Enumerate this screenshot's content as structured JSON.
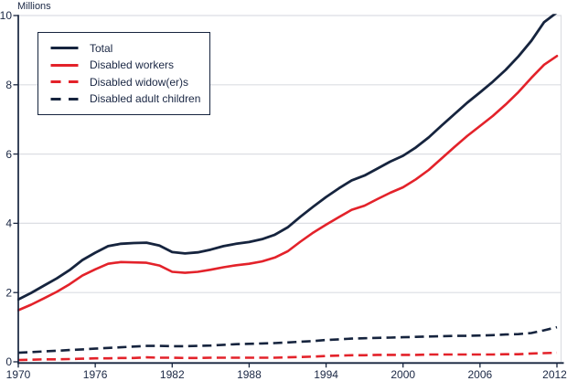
{
  "colors": {
    "navy": "#16243e",
    "red": "#e3222a",
    "grid": "#dcdee3",
    "text": "#1a2744",
    "background": "#ffffff"
  },
  "chart_data": {
    "type": "line",
    "title": "",
    "xlabel": "",
    "ylabel": "Millions",
    "xlim": [
      1970,
      2012
    ],
    "ylim": [
      0,
      10
    ],
    "xticks": [
      1970,
      1976,
      1982,
      1988,
      1994,
      2000,
      2006,
      2012
    ],
    "yticks": [
      0,
      2,
      4,
      6,
      8,
      10
    ],
    "grid": "horizontal",
    "legend_position": "top-left",
    "years": [
      1970,
      1971,
      1972,
      1973,
      1974,
      1975,
      1976,
      1977,
      1978,
      1979,
      1980,
      1981,
      1982,
      1983,
      1984,
      1985,
      1986,
      1987,
      1988,
      1989,
      1990,
      1991,
      1992,
      1993,
      1994,
      1995,
      1996,
      1997,
      1998,
      1999,
      2000,
      2001,
      2002,
      2003,
      2004,
      2005,
      2006,
      2007,
      2008,
      2009,
      2010,
      2011,
      2012
    ],
    "series": [
      {
        "name": "Total",
        "color": "#16243e",
        "style": "solid",
        "values": [
          1.8,
          1.99,
          2.2,
          2.41,
          2.65,
          2.94,
          3.15,
          3.34,
          3.41,
          3.43,
          3.44,
          3.36,
          3.17,
          3.13,
          3.16,
          3.24,
          3.34,
          3.41,
          3.46,
          3.54,
          3.67,
          3.88,
          4.19,
          4.48,
          4.76,
          5.01,
          5.24,
          5.38,
          5.58,
          5.78,
          5.95,
          6.19,
          6.48,
          6.82,
          7.15,
          7.48,
          7.78,
          8.09,
          8.43,
          8.82,
          9.27,
          9.81,
          10.09
        ]
      },
      {
        "name": "Disabled workers",
        "color": "#e3222a",
        "style": "solid",
        "values": [
          1.49,
          1.65,
          1.83,
          2.02,
          2.24,
          2.49,
          2.67,
          2.83,
          2.88,
          2.87,
          2.86,
          2.78,
          2.6,
          2.57,
          2.6,
          2.66,
          2.73,
          2.79,
          2.83,
          2.9,
          3.01,
          3.19,
          3.47,
          3.73,
          3.96,
          4.18,
          4.39,
          4.51,
          4.7,
          4.88,
          5.04,
          5.27,
          5.54,
          5.87,
          6.2,
          6.52,
          6.81,
          7.1,
          7.43,
          7.79,
          8.2,
          8.58,
          8.83
        ]
      },
      {
        "name": "Disabled widow(er)s",
        "color": "#e3222a",
        "style": "dashed",
        "values": [
          0.05,
          0.06,
          0.07,
          0.07,
          0.08,
          0.09,
          0.1,
          0.1,
          0.11,
          0.11,
          0.13,
          0.12,
          0.12,
          0.11,
          0.11,
          0.12,
          0.12,
          0.12,
          0.12,
          0.12,
          0.12,
          0.13,
          0.14,
          0.15,
          0.17,
          0.18,
          0.19,
          0.19,
          0.2,
          0.2,
          0.2,
          0.2,
          0.21,
          0.21,
          0.21,
          0.21,
          0.21,
          0.21,
          0.22,
          0.22,
          0.24,
          0.25,
          0.26
        ]
      },
      {
        "name": "Disabled adult children",
        "color": "#16243e",
        "style": "dashed",
        "values": [
          0.26,
          0.28,
          0.3,
          0.32,
          0.34,
          0.36,
          0.38,
          0.4,
          0.42,
          0.44,
          0.46,
          0.46,
          0.45,
          0.45,
          0.46,
          0.47,
          0.49,
          0.51,
          0.52,
          0.53,
          0.54,
          0.56,
          0.58,
          0.6,
          0.63,
          0.65,
          0.67,
          0.68,
          0.69,
          0.7,
          0.71,
          0.72,
          0.73,
          0.74,
          0.75,
          0.75,
          0.76,
          0.77,
          0.79,
          0.8,
          0.83,
          0.91,
          1.0
        ]
      }
    ]
  }
}
